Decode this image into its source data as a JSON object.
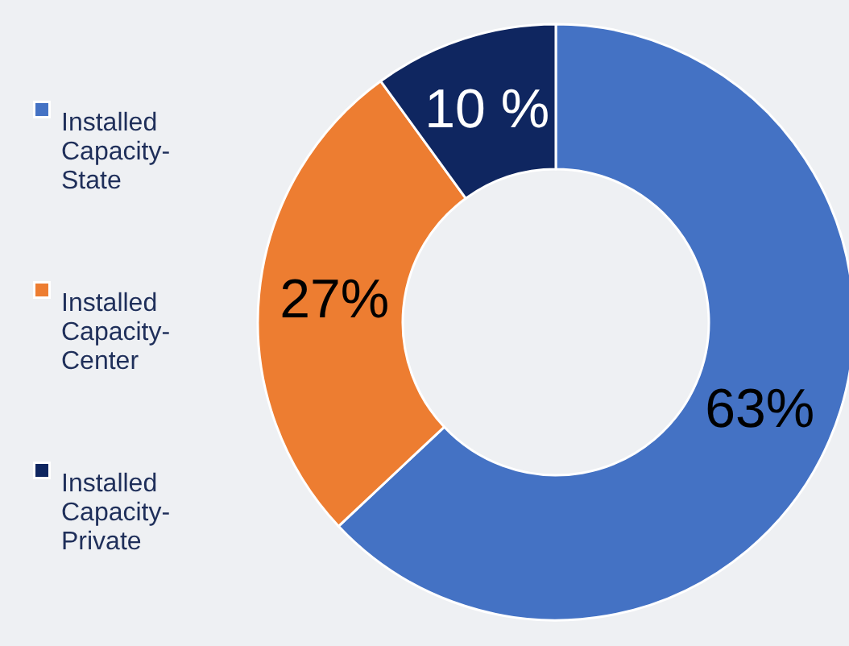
{
  "chart_data": {
    "type": "donut",
    "categories": [
      "Installed Capacity-State",
      "Installed Capacity-Center",
      "Installed Capacity-Private"
    ],
    "values": [
      63,
      27,
      10
    ],
    "value_labels": [
      "63%",
      "27%",
      "10 %"
    ],
    "colors": [
      "#4472c4",
      "#ed7d31",
      "#0f2660"
    ],
    "legend": "left"
  }
}
